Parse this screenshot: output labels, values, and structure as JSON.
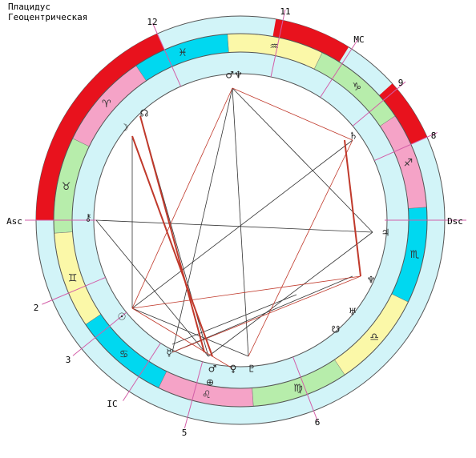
{
  "header": {
    "title": "Плацидус",
    "subtitle": "Геоцентрическая"
  },
  "houses": [
    {
      "label": "12"
    },
    {
      "label": "11"
    },
    {
      "label": "MC"
    },
    {
      "label": "9"
    },
    {
      "label": "8"
    },
    {
      "label": "Asc"
    },
    {
      "label": "Dsc"
    },
    {
      "label": "2"
    },
    {
      "label": "3"
    },
    {
      "label": "IC"
    },
    {
      "label": "5"
    },
    {
      "label": "6"
    }
  ],
  "signs": [
    "♈",
    "♉",
    "♊",
    "♋",
    "♌",
    "♍",
    "♎",
    "♏",
    "♐",
    "♑",
    "♒",
    "♓"
  ],
  "planets": [
    "☊",
    "☽",
    "♄",
    "♃",
    "♆",
    "♅",
    "☋",
    "♂",
    "♀",
    "♇",
    "☿",
    "☉",
    "⚷",
    "⊕",
    "♂♆"
  ]
}
